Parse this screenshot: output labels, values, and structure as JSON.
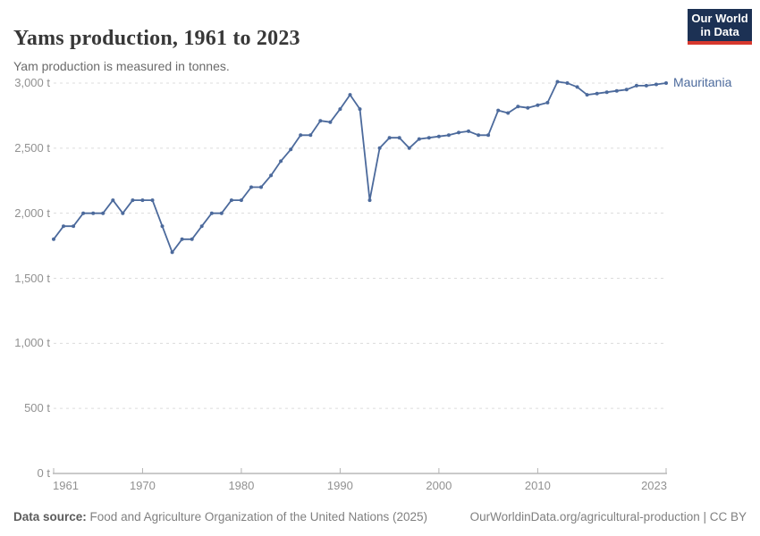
{
  "header": {
    "title": "Yams production, 1961 to 2023",
    "subtitle": "Yam production is measured in tonnes."
  },
  "logo": {
    "line1": "Our World",
    "line2": "in Data",
    "bg_color": "#1c3154",
    "accent_color": "#d7382e"
  },
  "chart_data": {
    "type": "line",
    "title": "Yams production, 1961 to 2023",
    "ylabel": "",
    "xlabel": "",
    "unit": "t",
    "xlim": [
      1961,
      2023
    ],
    "ylim": [
      0,
      3000
    ],
    "grid": "horizontal-dashed",
    "legend_position": "end-of-line",
    "x_ticks": [
      1961,
      1970,
      1980,
      1990,
      2000,
      2010,
      2023
    ],
    "y_ticks": [
      0,
      500,
      1000,
      1500,
      2000,
      2500,
      3000
    ],
    "y_tick_labels": [
      "0 t",
      "500 t",
      "1,000 t",
      "1,500 t",
      "2,000 t",
      "2,500 t",
      "3,000 t"
    ],
    "series": [
      {
        "name": "Mauritania",
        "color": "#4C6A9C",
        "x": [
          1961,
          1962,
          1963,
          1964,
          1965,
          1966,
          1967,
          1968,
          1969,
          1970,
          1971,
          1972,
          1973,
          1974,
          1975,
          1976,
          1977,
          1978,
          1979,
          1980,
          1981,
          1982,
          1983,
          1984,
          1985,
          1986,
          1987,
          1988,
          1989,
          1990,
          1991,
          1992,
          1993,
          1994,
          1995,
          1996,
          1997,
          1998,
          1999,
          2000,
          2001,
          2002,
          2003,
          2004,
          2005,
          2006,
          2007,
          2008,
          2009,
          2010,
          2011,
          2012,
          2013,
          2014,
          2015,
          2016,
          2017,
          2018,
          2019,
          2020,
          2021,
          2022,
          2023
        ],
        "values": [
          1800,
          1900,
          1900,
          2000,
          2000,
          2000,
          2100,
          2000,
          2100,
          2100,
          2100,
          1900,
          1700,
          1800,
          1800,
          1900,
          2000,
          2000,
          2100,
          2100,
          2200,
          2200,
          2290,
          2400,
          2490,
          2600,
          2600,
          2710,
          2700,
          2800,
          2910,
          2800,
          2100,
          2500,
          2580,
          2580,
          2500,
          2570,
          2580,
          2590,
          2600,
          2620,
          2630,
          2600,
          2600,
          2790,
          2770,
          2820,
          2810,
          2830,
          2850,
          3010,
          3000,
          2970,
          2910,
          2920,
          2930,
          2940,
          2950,
          2980,
          2980,
          2990,
          3000
        ]
      }
    ],
    "colors": {
      "gridline": "#dcdcdc",
      "axis": "#969696",
      "tick": "#b3b3b3",
      "axis_text": "#919191"
    }
  },
  "footer": {
    "source_label": "Data source:",
    "source_text": "Food and Agriculture Organization of the United Nations (2025)",
    "link_text": "OurWorldinData.org/agricultural-production | CC BY"
  }
}
